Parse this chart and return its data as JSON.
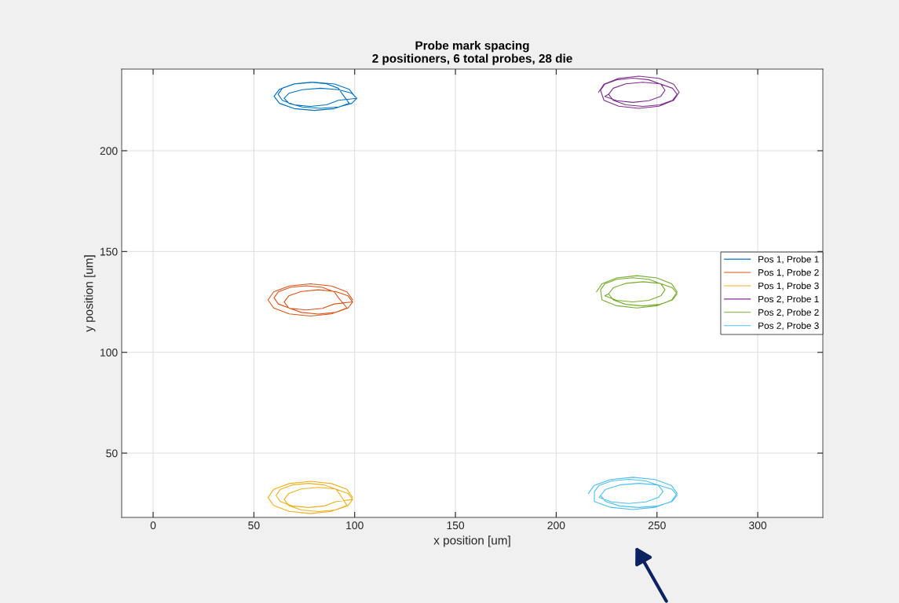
{
  "chart_data": {
    "type": "line",
    "title": "Probe mark spacing",
    "subtitle": "2 positioners, 6 total probes, 28 die",
    "xlabel": "x position [um]",
    "ylabel": "y position [um]",
    "xlim": [
      -15.6,
      332.3
    ],
    "ylim": [
      18.1,
      240.5
    ],
    "xticks": [
      0,
      50,
      100,
      150,
      200,
      250,
      300
    ],
    "yticks": [
      50,
      100,
      150,
      200
    ],
    "grid": true,
    "legend": "right",
    "marker": "none",
    "line_style": "solid",
    "series": [
      {
        "name": "Pos 1, Probe 1",
        "color": "#0072bd",
        "x": [
          100,
          97.3,
          90,
          80,
          70,
          62.7,
          60,
          62.7,
          70,
          80,
          90,
          97.3,
          94,
          91.9,
          86,
          78,
          70,
          64.1,
          62,
          64.1,
          70,
          78,
          86,
          91.9,
          101,
          98.6,
          92,
          83,
          74,
          67.4,
          65,
          67.4,
          74,
          83,
          92,
          98.6,
          101
        ],
        "values": [
          227,
          230.5,
          233.1,
          234,
          233.1,
          230.5,
          227,
          223.5,
          220.9,
          220,
          220.9,
          223.5,
          228,
          231,
          233.2,
          234,
          233.2,
          231,
          228,
          225,
          222.8,
          222,
          222.8,
          225,
          226,
          228.5,
          230.3,
          231,
          230.3,
          228.5,
          226,
          223.5,
          221.7,
          221,
          221.7,
          223.5,
          226
        ]
      },
      {
        "name": "Pos 1, Probe 2",
        "color": "#d95319",
        "x": [
          99,
          96.2,
          88.5,
          78,
          67.5,
          59.8,
          57,
          59.8,
          67.5,
          78,
          88.5,
          96.2,
          92,
          89.9,
          84,
          76,
          68,
          62.1,
          60,
          62.1,
          68,
          76,
          84,
          89.9,
          99,
          96.7,
          90.5,
          82,
          73.5,
          67.3,
          65,
          67.3,
          73.5,
          82,
          90.5,
          96.7,
          99
        ],
        "values": [
          126,
          130,
          132.9,
          134,
          132.9,
          130,
          126,
          122,
          119.1,
          118,
          119.1,
          122,
          127,
          130,
          132.2,
          133,
          132.2,
          130,
          127,
          124,
          121.8,
          121,
          121.8,
          124,
          125,
          128,
          130.2,
          131,
          130.2,
          128,
          125,
          122,
          119.8,
          119,
          119.8,
          122,
          125
        ]
      },
      {
        "name": "Pos 1, Probe 3",
        "color": "#edb120",
        "x": [
          99,
          96.2,
          88.5,
          78,
          67.5,
          59.8,
          57,
          59.8,
          67.5,
          78,
          88.5,
          96.2,
          93,
          90.9,
          85,
          77,
          69,
          63.1,
          61,
          63.1,
          69,
          77,
          85,
          90.9,
          99,
          96.7,
          90.5,
          82,
          73.5,
          67.3,
          65,
          67.3,
          73.5,
          82,
          90.5,
          96.7,
          99
        ],
        "values": [
          28,
          32,
          34.9,
          36,
          34.9,
          32,
          28,
          24,
          21.1,
          20,
          21.1,
          24,
          29,
          32,
          34.2,
          35,
          34.2,
          32,
          29,
          26,
          23.8,
          23,
          23.8,
          26,
          27,
          30,
          32.2,
          33,
          32.2,
          30,
          27,
          24,
          21.8,
          21,
          21.8,
          24,
          27
        ]
      },
      {
        "name": "Pos 2, Probe 1",
        "color": "#7e2f8e",
        "x": [
          221,
          223.7,
          231,
          241,
          251,
          258.3,
          261,
          258.3,
          251,
          241,
          231,
          223.7,
          222,
          224.1,
          230,
          238,
          246,
          251.9,
          254,
          251.9,
          246,
          238,
          230,
          224.1,
          226,
          228.3,
          234.5,
          243,
          251.5,
          257.7,
          260,
          257.7,
          251.5,
          243,
          234.5,
          228.3,
          226
        ],
        "values": [
          229,
          233,
          235.9,
          237,
          235.9,
          233,
          229,
          225,
          222.1,
          221,
          222.1,
          225,
          230,
          233,
          235.2,
          236,
          235.2,
          233,
          230,
          227,
          224.8,
          224,
          224.8,
          227,
          228,
          231,
          233.2,
          234,
          233.2,
          231,
          228,
          225,
          222.8,
          222,
          222.8,
          225,
          228
        ]
      },
      {
        "name": "Pos 2, Probe 2",
        "color": "#77ac30",
        "x": [
          220,
          222.7,
          230,
          240,
          250,
          257.3,
          260,
          257.3,
          250,
          240,
          230,
          222.7,
          222,
          224.1,
          230,
          238,
          246,
          251.9,
          254,
          251.9,
          246,
          238,
          230,
          224.1,
          226,
          228.3,
          234.5,
          243,
          251.5,
          257.7,
          260,
          257.7,
          251.5,
          243,
          234.5,
          228.3,
          226
        ],
        "values": [
          130,
          134,
          136.9,
          138,
          136.9,
          134,
          130,
          126,
          123.1,
          122,
          123.1,
          126,
          131,
          134,
          136.2,
          137,
          136.2,
          134,
          131,
          128,
          125.8,
          125,
          125.8,
          128,
          129,
          132,
          134.2,
          135,
          134.2,
          132,
          129,
          126,
          123.8,
          123,
          123.8,
          126,
          129
        ]
      },
      {
        "name": "Pos 2, Probe 3",
        "color": "#4dbeee",
        "x": [
          216,
          218.9,
          227,
          238,
          249,
          257.1,
          260,
          257.1,
          249,
          238,
          227,
          218.9,
          219,
          221.3,
          227.5,
          236,
          244.5,
          250.7,
          253,
          250.7,
          244.5,
          236,
          227.5,
          221.3,
          222,
          224.5,
          231.5,
          241,
          250.5,
          257.5,
          260,
          257.5,
          250.5,
          241,
          231.5,
          224.5,
          222
        ],
        "values": [
          30,
          34,
          36.9,
          38,
          36.9,
          34,
          30,
          26,
          23.1,
          22,
          23.1,
          26,
          31,
          34,
          36.2,
          37,
          36.2,
          34,
          31,
          28,
          25.8,
          25,
          25.8,
          28,
          29,
          32,
          34.2,
          35,
          34.2,
          32,
          29,
          26,
          23.8,
          23,
          23.8,
          26,
          29
        ]
      }
    ]
  }
}
